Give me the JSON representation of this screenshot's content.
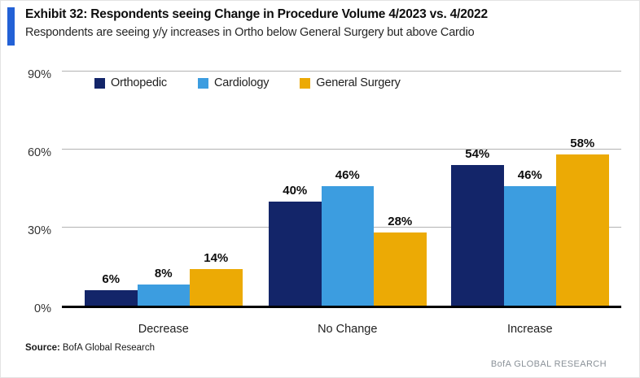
{
  "header": {
    "exhibit_title": "Exhibit 32: Respondents seeing Change in Procedure Volume 4/2023 vs. 4/2022",
    "subtitle": "Respondents are seeing y/y increases in Ortho below General Surgery but above Cardio"
  },
  "chart_data": {
    "type": "bar",
    "title": "Exhibit 32: Respondents seeing Change in Procedure Volume 4/2023 vs. 4/2022",
    "subtitle": "Respondents are seeing y/y increases in Ortho below General Surgery but above Cardio",
    "categories": [
      "Decrease",
      "No Change",
      "Increase"
    ],
    "series": [
      {
        "name": "Orthopedic",
        "color": "#132569",
        "values": [
          6,
          40,
          54
        ]
      },
      {
        "name": "Cardiology",
        "color": "#3c9de0",
        "values": [
          8,
          46,
          46
        ]
      },
      {
        "name": "General Surgery",
        "color": "#ecaa05",
        "values": [
          14,
          28,
          58
        ]
      }
    ],
    "value_labels": [
      [
        "6%",
        "40%",
        "54%"
      ],
      [
        "8%",
        "46%",
        "46%"
      ],
      [
        "14%",
        "28%",
        "58%"
      ]
    ],
    "ylim": [
      0,
      90
    ],
    "yticks": [
      "0%",
      "30%",
      "60%",
      "90%"
    ],
    "ytick_values": [
      0,
      30,
      60,
      90
    ],
    "gridline_values": [
      30,
      60,
      90
    ],
    "grid": "horizontal",
    "legend_position": "top",
    "xlabel": "",
    "ylabel": ""
  },
  "footer": {
    "source_label": "Source:",
    "source_text": "BofA Global Research",
    "brand": "BofA GLOBAL RESEARCH"
  },
  "colors": {
    "accent_bar": "#2361d6",
    "orthopedic": "#132569",
    "cardiology": "#3c9de0",
    "general_surgery": "#ecaa05",
    "gridline": "#b3b3b3",
    "axis_baseline": "#000000",
    "brand_text": "#8a9198"
  }
}
